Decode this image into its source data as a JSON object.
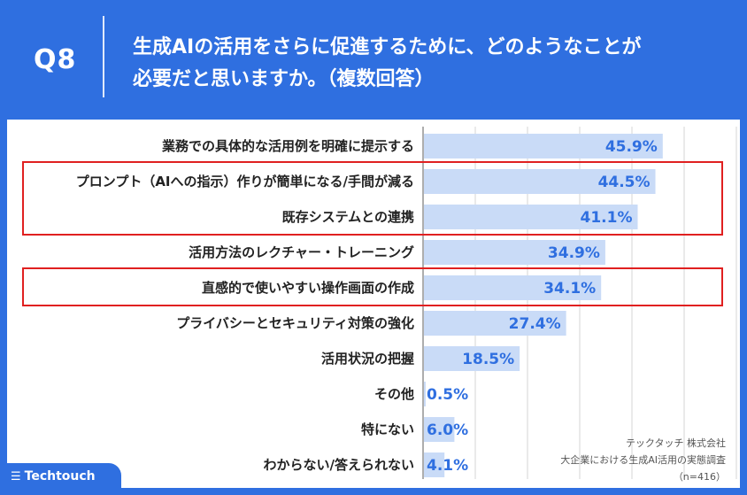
{
  "question": {
    "number": "Q8",
    "text_line1": "生成AIの活用をさらに促進するために、どのようなことが",
    "text_line2": "必要だと思いますか。（複数回答）"
  },
  "chart_data": {
    "type": "bar",
    "orientation": "horizontal",
    "categories": [
      "業務での具体的な活用例を明確に提示する",
      "プロンプト（AIへの指示）作りが簡単になる/手間が減る",
      "既存システムとの連携",
      "活用方法のレクチャー・トレーニング",
      "直感的で使いやすい操作画面の作成",
      "プライバシーとセキュリティ対策の強化",
      "活用状況の把握",
      "その他",
      "特にない",
      "わからない/答えられない"
    ],
    "values": [
      45.9,
      44.5,
      41.1,
      34.9,
      34.1,
      27.4,
      18.5,
      0.5,
      6.0,
      4.1
    ],
    "value_labels": [
      "45.9%",
      "44.5%",
      "41.1%",
      "34.9%",
      "34.1%",
      "27.4%",
      "18.5%",
      "0.5%",
      "6.0%",
      "4.1%"
    ],
    "xlim": [
      0,
      60
    ],
    "grid": true,
    "bar_color": "#c9dbf7",
    "value_color": "#2f6fe0",
    "highlight_color": "#e02020",
    "highlight_groups": [
      [
        1,
        2
      ],
      [
        4
      ]
    ]
  },
  "source": {
    "company": "テックタッチ 株式会社",
    "survey": "大企業における生成AI活用の実態調査",
    "sample": "（n=416）"
  },
  "brand": {
    "name": "Techtouch",
    "mark": "☰"
  }
}
